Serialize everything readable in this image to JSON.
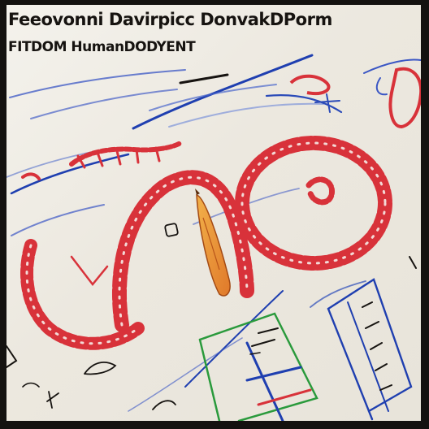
{
  "board": {
    "title": "Feeovonni Davirpicc DonvakDPorm",
    "subtitle": "FITDOM HumanDODYENT",
    "colors": {
      "surface": "#eeebe4",
      "ink": "#161310",
      "red_marker": "#d8323a",
      "blue_marker": "#1f3fb0",
      "green_marker": "#2a9a3c",
      "orange_marker": "#f29a2e"
    }
  }
}
